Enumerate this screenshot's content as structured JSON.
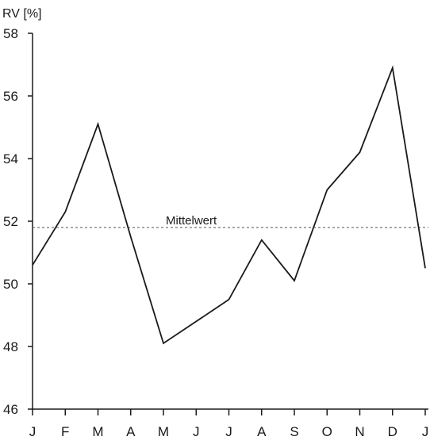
{
  "chart_data": {
    "type": "line",
    "ylabel": "RV [%]",
    "categories": [
      "J",
      "F",
      "M",
      "A",
      "M",
      "J",
      "J",
      "A",
      "S",
      "O",
      "N",
      "D",
      "J"
    ],
    "series": [
      {
        "values": [
          50.6,
          52.3,
          55.1,
          51.5,
          48.1,
          48.8,
          49.5,
          51.4,
          50.1,
          53.0,
          54.2,
          56.9,
          50.5
        ],
        "color": "#1a1a1a"
      }
    ],
    "reference_line": {
      "label": "Mittelwert",
      "value": 51.8,
      "style": "dashed",
      "color": "#777777"
    },
    "ylim": [
      46,
      58
    ],
    "yticks": [
      46,
      48,
      50,
      52,
      54,
      56,
      58
    ],
    "grid": false,
    "legend": "none"
  }
}
